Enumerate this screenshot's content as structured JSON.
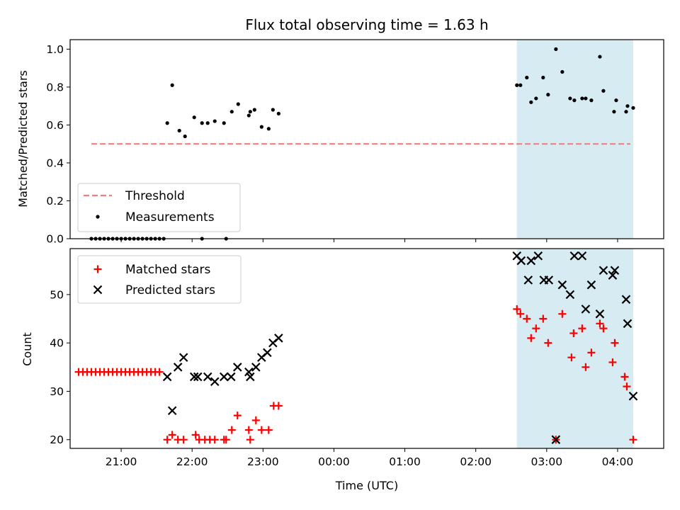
{
  "figure_title": "Flux total observing time = 1.63 h",
  "colors": {
    "threshold": "#f08080",
    "measurement": "#000000",
    "matched": "#ff0000",
    "predicted": "#000000",
    "shade": "#add8e6"
  },
  "chart_data": [
    {
      "type": "scatter",
      "title": "Flux total observing time = 1.63 h",
      "xlabel": "",
      "ylabel": "Matched/Predicted stars",
      "x_unit": "hours since 20:00 UTC",
      "xlim": [
        0.28,
        8.65
      ],
      "ylim": [
        0,
        1.05
      ],
      "yticks": [
        0.0,
        0.2,
        0.4,
        0.6,
        0.8,
        1.0
      ],
      "ytick_labels": [
        "0.0",
        "0.2",
        "0.4",
        "0.6",
        "0.8",
        "1.0"
      ],
      "shaded_span": [
        6.58,
        8.22
      ],
      "legend": {
        "position": "lower-left",
        "entries": [
          "Threshold",
          "Measurements"
        ]
      },
      "series": [
        {
          "name": "Threshold",
          "kind": "dashed-line",
          "x": [
            0.58,
            8.18
          ],
          "y": [
            0.5,
            0.5
          ]
        },
        {
          "name": "Measurements",
          "kind": "dot",
          "x": [
            0.58,
            0.64,
            0.7,
            0.76,
            0.82,
            0.88,
            0.94,
            1.0,
            1.06,
            1.12,
            1.18,
            1.24,
            1.3,
            1.36,
            1.42,
            1.48,
            1.54,
            1.6,
            1.65,
            1.72,
            1.82,
            1.9,
            2.03,
            2.14,
            2.22,
            2.32,
            2.45,
            2.56,
            2.65,
            2.8,
            2.82,
            2.88,
            2.98,
            3.08,
            3.14,
            3.22,
            2.14,
            2.48,
            6.58,
            6.63,
            6.72,
            6.78,
            6.85,
            6.95,
            7.02,
            7.13,
            7.22,
            7.33,
            7.39,
            7.5,
            7.55,
            7.63,
            7.75,
            7.8,
            7.95,
            7.98,
            8.12,
            8.14,
            8.22
          ],
          "y": [
            0,
            0,
            0,
            0,
            0,
            0,
            0,
            0,
            0,
            0,
            0,
            0,
            0,
            0,
            0,
            0,
            0,
            0,
            0.61,
            0.81,
            0.57,
            0.54,
            0.64,
            0.61,
            0.61,
            0.62,
            0.61,
            0.67,
            0.71,
            0.65,
            0.67,
            0.68,
            0.59,
            0.58,
            0.68,
            0.66,
            0,
            0,
            0.81,
            0.81,
            0.85,
            0.72,
            0.74,
            0.85,
            0.76,
            1.0,
            0.88,
            0.74,
            0.73,
            0.74,
            0.74,
            0.73,
            0.96,
            0.78,
            0.67,
            0.73,
            0.67,
            0.7,
            0.69
          ]
        }
      ]
    },
    {
      "type": "scatter",
      "title": "",
      "xlabel": "Time (UTC)",
      "ylabel": "Count",
      "x_unit": "hours since 20:00 UTC",
      "xlim": [
        0.28,
        8.65
      ],
      "ylim": [
        18.2,
        59.5
      ],
      "xticks": [
        1,
        2,
        3,
        4,
        5,
        6,
        7,
        8
      ],
      "xtick_labels": [
        "21:00",
        "22:00",
        "23:00",
        "00:00",
        "01:00",
        "02:00",
        "03:00",
        "04:00"
      ],
      "yticks": [
        20,
        30,
        40,
        50
      ],
      "ytick_labels": [
        "20",
        "30",
        "40",
        "50"
      ],
      "shaded_span": [
        6.58,
        8.22
      ],
      "legend": {
        "position": "top-left",
        "entries": [
          "Matched stars",
          "Predicted stars"
        ]
      },
      "series": [
        {
          "name": "Matched stars",
          "marker": "+",
          "x": [
            0.4,
            0.46,
            0.52,
            0.58,
            0.64,
            0.7,
            0.76,
            0.82,
            0.88,
            0.94,
            1.0,
            1.06,
            1.12,
            1.18,
            1.24,
            1.3,
            1.36,
            1.42,
            1.48,
            1.54,
            1.65,
            1.72,
            1.8,
            1.88,
            2.05,
            2.1,
            2.18,
            2.25,
            2.32,
            2.45,
            2.48,
            2.56,
            2.64,
            2.8,
            2.82,
            2.9,
            2.98,
            3.08,
            3.15,
            3.22,
            6.58,
            6.63,
            6.72,
            6.78,
            6.85,
            6.95,
            7.02,
            7.13,
            7.22,
            7.35,
            7.38,
            7.5,
            7.55,
            7.63,
            7.75,
            7.8,
            7.93,
            7.96,
            8.1,
            8.13,
            8.22
          ],
          "y": [
            34,
            34,
            34,
            34,
            34,
            34,
            34,
            34,
            34,
            34,
            34,
            34,
            34,
            34,
            34,
            34,
            34,
            34,
            34,
            34,
            20,
            21,
            20,
            20,
            21,
            20,
            20,
            20,
            20,
            20,
            20,
            22,
            25,
            22,
            20,
            24,
            22,
            22,
            27,
            27,
            47,
            46,
            45,
            41,
            43,
            45,
            40,
            20,
            46,
            37,
            42,
            43,
            35,
            38,
            44,
            43,
            36,
            40,
            33,
            31,
            20
          ]
        },
        {
          "name": "Predicted stars",
          "marker": "x",
          "x": [
            1.65,
            1.72,
            1.8,
            1.88,
            2.03,
            2.08,
            2.22,
            2.32,
            2.45,
            2.55,
            2.64,
            2.8,
            2.82,
            2.9,
            2.98,
            3.06,
            3.14,
            3.22,
            6.58,
            6.64,
            6.74,
            6.78,
            6.88,
            6.96,
            7.03,
            7.13,
            7.22,
            7.33,
            7.39,
            7.5,
            7.55,
            7.63,
            7.75,
            7.8,
            7.93,
            7.96,
            8.12,
            8.14,
            8.22
          ],
          "y": [
            33,
            26,
            35,
            37,
            33,
            33,
            33,
            32,
            33,
            33,
            35,
            34,
            33,
            35,
            37,
            38,
            40,
            41,
            58,
            57,
            53,
            57,
            58,
            53,
            53,
            20,
            52,
            50,
            58,
            58,
            47,
            52,
            46,
            55,
            54,
            55,
            49,
            44,
            29
          ]
        }
      ]
    }
  ]
}
